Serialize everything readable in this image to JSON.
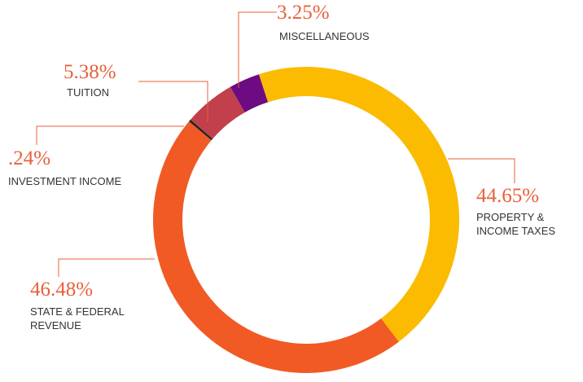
{
  "chart_data": {
    "type": "donut",
    "categories": [
      "PROPERTY & INCOME TAXES",
      "STATE & FEDERAL REVENUE",
      "INVESTMENT INCOME",
      "TUITION",
      "MISCELLANEOUS"
    ],
    "values": [
      44.65,
      46.48,
      0.24,
      5.38,
      3.25
    ],
    "value_labels": [
      "44.65%",
      "46.48%",
      ".24%",
      "5.38%",
      "3.25%"
    ],
    "colors": [
      "#fbbb00",
      "#f15a24",
      "#222222",
      "#c1404b",
      "#6d0b82"
    ]
  }
}
